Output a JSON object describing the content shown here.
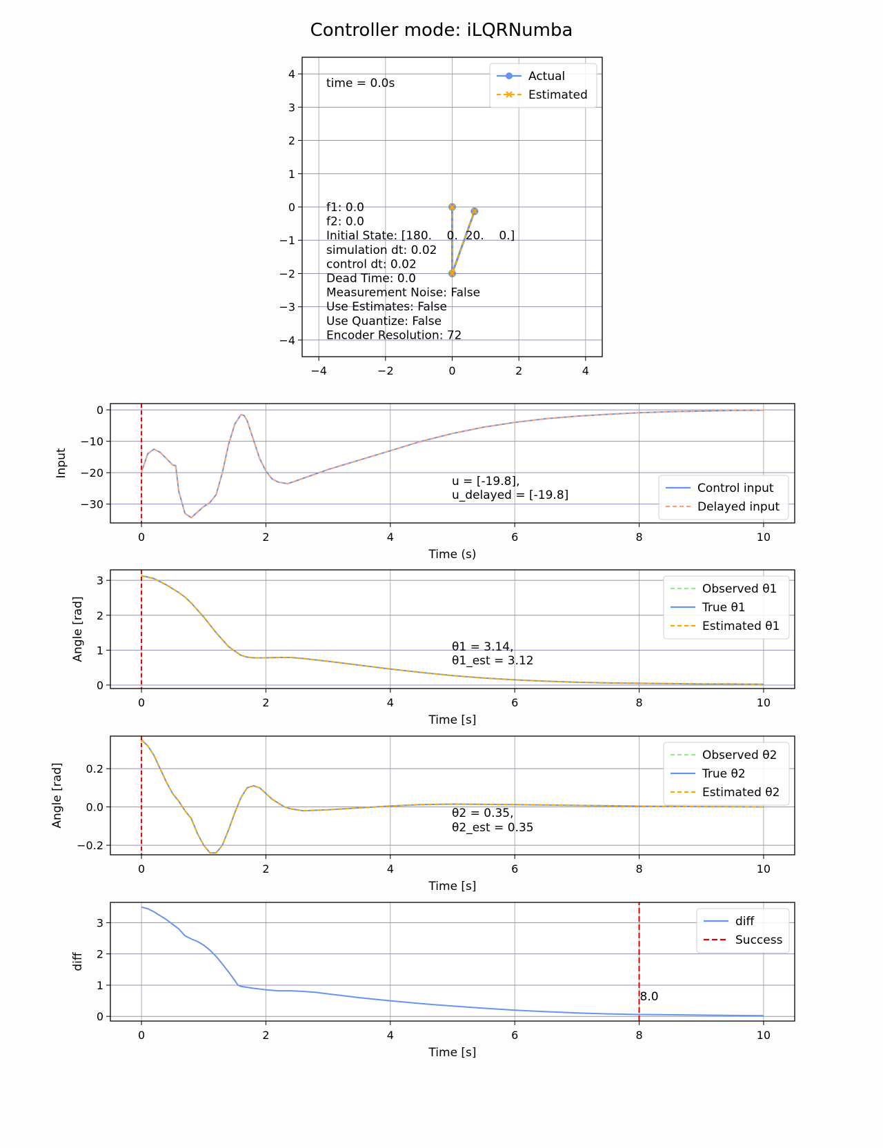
{
  "figure": {
    "title": "Controller mode: iLQRNumba"
  },
  "colors": {
    "actual": "#6495ED",
    "estimated": "#FFA500",
    "control": "#6495ED",
    "delayed": "#FFA07A",
    "observed": "#90EE90",
    "true": "#6495ED",
    "marker": "#DD0000",
    "grid": "#b0b0b0",
    "grid_dark": "#8f8fb8"
  },
  "chart_data": [
    {
      "type": "line",
      "id": "pendulum",
      "xlim": [
        -4.5,
        4.5
      ],
      "ylim": [
        -4.5,
        4.5
      ],
      "xticks": [
        -4,
        -2,
        0,
        2,
        4
      ],
      "yticks": [
        -4,
        -3,
        -2,
        -1,
        0,
        1,
        2,
        3,
        4
      ],
      "xtick_labels": [
        "−4",
        "−2",
        "0",
        "2",
        "4"
      ],
      "ytick_labels": [
        "−4",
        "−3",
        "−2",
        "−1",
        "0",
        "1",
        "2",
        "3",
        "4"
      ],
      "grid": true,
      "legend": "top-right",
      "series": [
        {
          "name": "Actual",
          "x": [
            0.0,
            0.0,
            0.67
          ],
          "y": [
            0.0,
            -2.0,
            -0.13
          ]
        },
        {
          "name": "Estimated",
          "x": [
            0.0,
            0.0,
            0.67
          ],
          "y": [
            0.0,
            -2.0,
            -0.13
          ]
        }
      ],
      "time_text": "time = 0.0s",
      "info_lines": [
        "f1: 0.0",
        "f2: 0.0",
        "Initial State: [180.    0.  20.    0.]",
        "simulation dt: 0.02",
        "control dt: 0.02",
        "Dead Time: 0.0",
        "Measurement Noise: False",
        "Use Estimates: False",
        "Use Quantize: False",
        "Encoder Resolution: 72"
      ]
    },
    {
      "type": "line",
      "id": "input",
      "xlabel": "Time (s)",
      "ylabel": "Input",
      "xlim": [
        -0.5,
        10.5
      ],
      "ylim": [
        -36,
        2
      ],
      "xticks": [
        0,
        2,
        4,
        6,
        8,
        10
      ],
      "yticks": [
        0,
        -10,
        -20,
        -30
      ],
      "xtick_labels": [
        "0",
        "2",
        "4",
        "6",
        "8",
        "10"
      ],
      "ytick_labels": [
        "0",
        "−10",
        "−20",
        "−30"
      ],
      "grid": true,
      "legend": "lower-right",
      "vline": 0,
      "series": [
        {
          "name": "Control input",
          "x": [
            0,
            0.1,
            0.2,
            0.3,
            0.4,
            0.5,
            0.55,
            0.6,
            0.7,
            0.8,
            0.9,
            1.0,
            1.1,
            1.2,
            1.3,
            1.4,
            1.5,
            1.6,
            1.65,
            1.7,
            1.8,
            1.9,
            2.0,
            2.1,
            2.2,
            2.35,
            2.5,
            3.0,
            3.5,
            4.0,
            4.5,
            5.0,
            5.5,
            6.0,
            6.5,
            7.0,
            7.5,
            8.0,
            8.5,
            9.0,
            9.5,
            10.0
          ],
          "y": [
            -19.8,
            -14,
            -12.5,
            -13.5,
            -15.5,
            -17.5,
            -17.8,
            -26,
            -33,
            -34.3,
            -32.5,
            -30.8,
            -29.5,
            -27,
            -20,
            -11,
            -4.5,
            -1.5,
            -1.8,
            -3.5,
            -9.5,
            -15.5,
            -19.5,
            -22,
            -23,
            -23.5,
            -22.5,
            -19,
            -16,
            -13,
            -10,
            -7.5,
            -5.5,
            -4.0,
            -2.8,
            -2.0,
            -1.4,
            -0.9,
            -0.6,
            -0.4,
            -0.2,
            -0.1
          ]
        },
        {
          "name": "Delayed input",
          "x": [
            0,
            0.1,
            0.2,
            0.3,
            0.4,
            0.5,
            0.55,
            0.6,
            0.7,
            0.8,
            0.9,
            1.0,
            1.1,
            1.2,
            1.3,
            1.4,
            1.5,
            1.6,
            1.65,
            1.7,
            1.8,
            1.9,
            2.0,
            2.1,
            2.2,
            2.35,
            2.5,
            3.0,
            3.5,
            4.0,
            4.5,
            5.0,
            5.5,
            6.0,
            6.5,
            7.0,
            7.5,
            8.0,
            8.5,
            9.0,
            9.5,
            10.0
          ],
          "y": [
            -19.8,
            -14,
            -12.5,
            -13.5,
            -15.5,
            -17.5,
            -17.8,
            -26,
            -33,
            -34.3,
            -32.5,
            -30.8,
            -29.5,
            -27,
            -20,
            -11,
            -4.5,
            -1.5,
            -1.8,
            -3.5,
            -9.5,
            -15.5,
            -19.5,
            -22,
            -23,
            -23.5,
            -22.5,
            -19,
            -16,
            -13,
            -10,
            -7.5,
            -5.5,
            -4.0,
            -2.8,
            -2.0,
            -1.4,
            -0.9,
            -0.6,
            -0.4,
            -0.2,
            -0.1
          ]
        }
      ],
      "annotation": [
        "u = [-19.8],",
        "u_delayed = [-19.8]"
      ]
    },
    {
      "type": "line",
      "id": "theta1",
      "xlabel": "Time [s]",
      "ylabel": "Angle [rad]",
      "xlim": [
        -0.5,
        10.5
      ],
      "ylim": [
        -0.1,
        3.3
      ],
      "xticks": [
        0,
        2,
        4,
        6,
        8,
        10
      ],
      "yticks": [
        0,
        1,
        2,
        3
      ],
      "xtick_labels": [
        "0",
        "2",
        "4",
        "6",
        "8",
        "10"
      ],
      "ytick_labels": [
        "0",
        "1",
        "2",
        "3"
      ],
      "grid": true,
      "legend": "top-right",
      "vline": 0,
      "series": [
        {
          "name": "Observed θ1",
          "x": [
            0,
            0.2,
            0.4,
            0.6,
            0.7,
            0.8,
            1.0,
            1.2,
            1.4,
            1.6,
            1.7,
            1.8,
            2.0,
            2.2,
            2.4,
            2.6,
            3.0,
            3.5,
            4.0,
            4.5,
            5.0,
            5.5,
            6.0,
            6.5,
            7.0,
            7.5,
            8.0,
            8.5,
            9.0,
            9.5,
            10.0
          ],
          "y": [
            3.14,
            3.05,
            2.87,
            2.65,
            2.52,
            2.35,
            1.95,
            1.5,
            1.1,
            0.85,
            0.8,
            0.78,
            0.78,
            0.79,
            0.79,
            0.76,
            0.68,
            0.57,
            0.46,
            0.36,
            0.27,
            0.2,
            0.15,
            0.11,
            0.08,
            0.06,
            0.05,
            0.04,
            0.03,
            0.03,
            0.02
          ]
        },
        {
          "name": "True θ1",
          "x": [
            0,
            0.2,
            0.4,
            0.6,
            0.7,
            0.8,
            1.0,
            1.2,
            1.4,
            1.6,
            1.7,
            1.8,
            2.0,
            2.2,
            2.4,
            2.6,
            3.0,
            3.5,
            4.0,
            4.5,
            5.0,
            5.5,
            6.0,
            6.5,
            7.0,
            7.5,
            8.0,
            8.5,
            9.0,
            9.5,
            10.0
          ],
          "y": [
            3.14,
            3.05,
            2.87,
            2.65,
            2.52,
            2.35,
            1.95,
            1.5,
            1.1,
            0.85,
            0.8,
            0.78,
            0.78,
            0.79,
            0.79,
            0.76,
            0.68,
            0.57,
            0.46,
            0.36,
            0.27,
            0.2,
            0.15,
            0.11,
            0.08,
            0.06,
            0.05,
            0.04,
            0.03,
            0.03,
            0.02
          ]
        },
        {
          "name": "Estimated θ1",
          "x": [
            0,
            0.2,
            0.4,
            0.6,
            0.7,
            0.8,
            1.0,
            1.2,
            1.4,
            1.6,
            1.7,
            1.8,
            2.0,
            2.2,
            2.4,
            2.6,
            3.0,
            3.5,
            4.0,
            4.5,
            5.0,
            5.5,
            6.0,
            6.5,
            7.0,
            7.5,
            8.0,
            8.5,
            9.0,
            9.5,
            10.0
          ],
          "y": [
            3.12,
            3.05,
            2.87,
            2.65,
            2.52,
            2.35,
            1.95,
            1.5,
            1.1,
            0.85,
            0.8,
            0.78,
            0.78,
            0.79,
            0.79,
            0.76,
            0.68,
            0.57,
            0.46,
            0.36,
            0.27,
            0.2,
            0.15,
            0.11,
            0.08,
            0.06,
            0.05,
            0.04,
            0.03,
            0.03,
            0.02
          ]
        }
      ],
      "annotation": [
        "θ1 = 3.14,",
        "θ1_est = 3.12"
      ]
    },
    {
      "type": "line",
      "id": "theta2",
      "xlabel": "Time [s]",
      "ylabel": "Angle [rad]",
      "xlim": [
        -0.5,
        10.5
      ],
      "ylim": [
        -0.25,
        0.37
      ],
      "xticks": [
        0,
        2,
        4,
        6,
        8,
        10
      ],
      "yticks": [
        0.2,
        0.0,
        -0.2
      ],
      "xtick_labels": [
        "0",
        "2",
        "4",
        "6",
        "8",
        "10"
      ],
      "ytick_labels": [
        "0.2",
        "0.0",
        "−0.2"
      ],
      "grid": true,
      "legend": "top-right",
      "vline": 0,
      "series": [
        {
          "name": "Observed θ2",
          "x": [
            0,
            0.1,
            0.2,
            0.3,
            0.4,
            0.5,
            0.6,
            0.7,
            0.8,
            0.9,
            1.0,
            1.1,
            1.2,
            1.3,
            1.4,
            1.5,
            1.6,
            1.7,
            1.8,
            1.9,
            2.0,
            2.1,
            2.2,
            2.3,
            2.4,
            2.6,
            3.0,
            3.5,
            4.0,
            4.5,
            5.0,
            6.0,
            7.0,
            8.0,
            9.0,
            10.0
          ],
          "y": [
            0.35,
            0.32,
            0.27,
            0.2,
            0.13,
            0.07,
            0.03,
            -0.02,
            -0.06,
            -0.14,
            -0.2,
            -0.24,
            -0.24,
            -0.2,
            -0.12,
            -0.03,
            0.05,
            0.1,
            0.11,
            0.1,
            0.07,
            0.04,
            0.02,
            0.0,
            -0.01,
            -0.02,
            -0.015,
            -0.005,
            0.005,
            0.012,
            0.015,
            0.012,
            0.008,
            0.004,
            0.002,
            0.0
          ]
        },
        {
          "name": "True θ2",
          "x": [
            0,
            0.1,
            0.2,
            0.3,
            0.4,
            0.5,
            0.6,
            0.7,
            0.8,
            0.9,
            1.0,
            1.1,
            1.2,
            1.3,
            1.4,
            1.5,
            1.6,
            1.7,
            1.8,
            1.9,
            2.0,
            2.1,
            2.2,
            2.3,
            2.4,
            2.6,
            3.0,
            3.5,
            4.0,
            4.5,
            5.0,
            6.0,
            7.0,
            8.0,
            9.0,
            10.0
          ],
          "y": [
            0.35,
            0.32,
            0.27,
            0.2,
            0.13,
            0.07,
            0.03,
            -0.02,
            -0.06,
            -0.14,
            -0.2,
            -0.24,
            -0.24,
            -0.2,
            -0.12,
            -0.03,
            0.05,
            0.1,
            0.11,
            0.1,
            0.07,
            0.04,
            0.02,
            0.0,
            -0.01,
            -0.02,
            -0.015,
            -0.005,
            0.005,
            0.012,
            0.015,
            0.012,
            0.008,
            0.004,
            0.002,
            0.0
          ]
        },
        {
          "name": "Estimated θ2",
          "x": [
            0,
            0.1,
            0.2,
            0.3,
            0.4,
            0.5,
            0.6,
            0.7,
            0.8,
            0.9,
            1.0,
            1.1,
            1.2,
            1.3,
            1.4,
            1.5,
            1.6,
            1.7,
            1.8,
            1.9,
            2.0,
            2.1,
            2.2,
            2.3,
            2.4,
            2.6,
            3.0,
            3.5,
            4.0,
            4.5,
            5.0,
            6.0,
            7.0,
            8.0,
            9.0,
            10.0
          ],
          "y": [
            0.35,
            0.32,
            0.27,
            0.2,
            0.13,
            0.07,
            0.03,
            -0.02,
            -0.06,
            -0.14,
            -0.2,
            -0.24,
            -0.24,
            -0.2,
            -0.12,
            -0.03,
            0.05,
            0.1,
            0.11,
            0.1,
            0.07,
            0.04,
            0.02,
            0.0,
            -0.01,
            -0.02,
            -0.015,
            -0.005,
            0.005,
            0.012,
            0.015,
            0.012,
            0.008,
            0.004,
            0.002,
            0.0
          ]
        }
      ],
      "annotation": [
        "θ2 = 0.35,",
        "θ2_est = 0.35"
      ]
    },
    {
      "type": "line",
      "id": "diff",
      "xlabel": "Time [s]",
      "ylabel": "diff",
      "xlim": [
        -0.5,
        10.5
      ],
      "ylim": [
        -0.15,
        3.65
      ],
      "xticks": [
        0,
        2,
        4,
        6,
        8,
        10
      ],
      "yticks": [
        0,
        1,
        2,
        3
      ],
      "xtick_labels": [
        "0",
        "2",
        "4",
        "6",
        "8",
        "10"
      ],
      "ytick_labels": [
        "0",
        "1",
        "2",
        "3"
      ],
      "grid": true,
      "legend": "top-right",
      "vline": 8.0,
      "series": [
        {
          "name": "diff",
          "x": [
            0,
            0.1,
            0.2,
            0.4,
            0.6,
            0.7,
            0.8,
            0.9,
            1.0,
            1.1,
            1.2,
            1.3,
            1.4,
            1.5,
            1.55,
            1.6,
            1.8,
            2.0,
            2.2,
            2.4,
            2.6,
            2.8,
            3.0,
            3.5,
            4.0,
            4.5,
            5.0,
            5.5,
            6.0,
            6.5,
            7.0,
            7.5,
            8.0,
            8.5,
            9.0,
            9.5,
            10.0
          ],
          "y": [
            3.5,
            3.45,
            3.35,
            3.1,
            2.8,
            2.58,
            2.48,
            2.4,
            2.28,
            2.12,
            1.92,
            1.68,
            1.42,
            1.15,
            1.0,
            0.96,
            0.9,
            0.85,
            0.82,
            0.82,
            0.8,
            0.77,
            0.72,
            0.6,
            0.5,
            0.41,
            0.33,
            0.26,
            0.2,
            0.15,
            0.11,
            0.08,
            0.06,
            0.05,
            0.04,
            0.03,
            0.02
          ]
        },
        {
          "name": "Success",
          "x": [
            8.0,
            8.0
          ],
          "y": [
            -0.15,
            3.65
          ]
        }
      ],
      "annotation": [
        "8.0"
      ]
    }
  ]
}
